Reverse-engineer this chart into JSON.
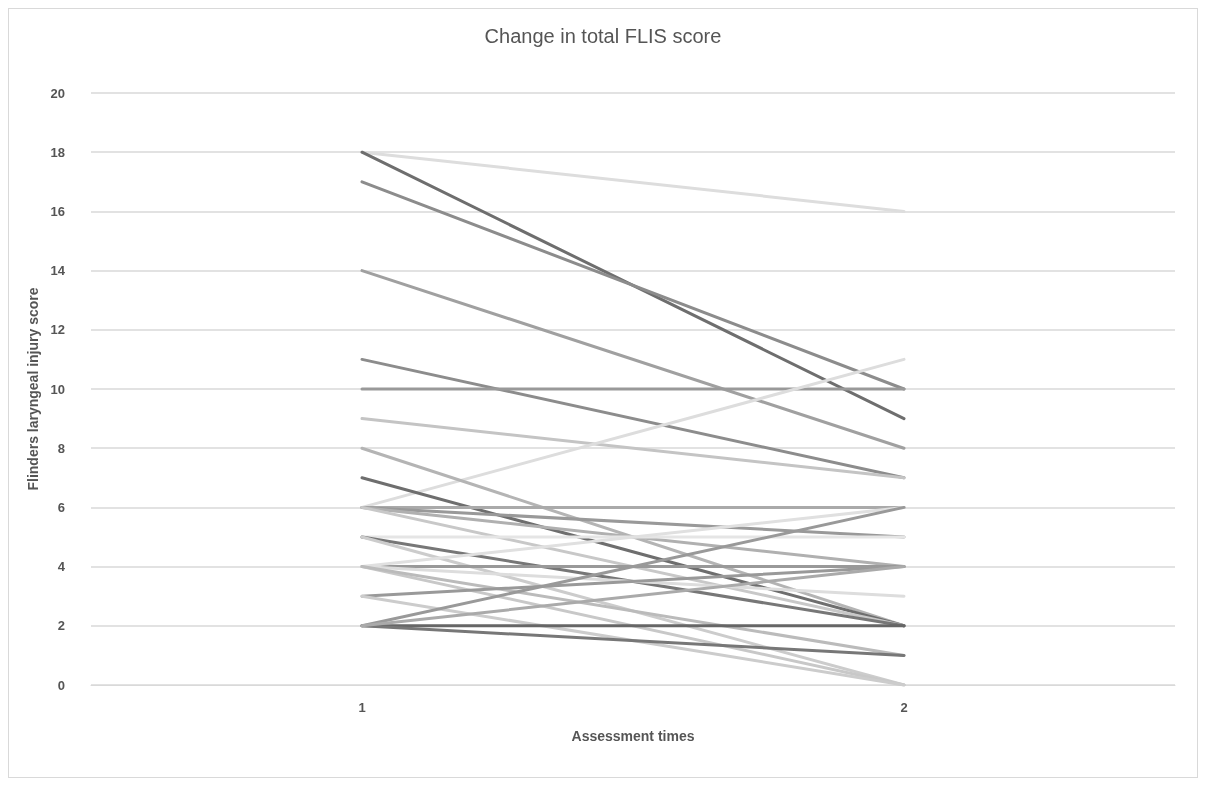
{
  "chart_data": {
    "type": "line",
    "title": "Change in total FLIS score",
    "xlabel": "Assessment times",
    "ylabel": "Flinders laryngeal injury score",
    "categories": [
      "1",
      "2"
    ],
    "ylim": [
      0,
      20
    ],
    "yticks": [
      0,
      2,
      4,
      6,
      8,
      10,
      12,
      14,
      16,
      18,
      20
    ],
    "grid": "y",
    "marker": "none",
    "series": [
      {
        "color": "#dddddd",
        "values": [
          18,
          16
        ]
      },
      {
        "color": "#6e6e6e",
        "values": [
          18,
          9
        ]
      },
      {
        "color": "#8c8c8c",
        "values": [
          17,
          10
        ]
      },
      {
        "color": "#a0a0a0",
        "values": [
          14,
          8
        ]
      },
      {
        "color": "#8c8c8c",
        "values": [
          11,
          7
        ]
      },
      {
        "color": "#999999",
        "values": [
          10,
          10
        ]
      },
      {
        "color": "#c4c4c4",
        "values": [
          9,
          7
        ]
      },
      {
        "color": "#dddddd",
        "values": [
          6,
          11
        ]
      },
      {
        "color": "#b4b4b4",
        "values": [
          8,
          2
        ]
      },
      {
        "color": "#6e6e6e",
        "values": [
          7,
          2
        ]
      },
      {
        "color": "#aaaaaa",
        "values": [
          6,
          6
        ]
      },
      {
        "color": "#999999",
        "values": [
          6,
          5
        ]
      },
      {
        "color": "#b0b0b0",
        "values": [
          6,
          4
        ]
      },
      {
        "color": "#c8c8c8",
        "values": [
          6,
          2
        ]
      },
      {
        "color": "#e5e5e5",
        "values": [
          5,
          5
        ]
      },
      {
        "color": "#777777",
        "values": [
          5,
          2
        ]
      },
      {
        "color": "#cccccc",
        "values": [
          5,
          0
        ]
      },
      {
        "color": "#999999",
        "values": [
          4,
          4
        ]
      },
      {
        "color": "#dddddd",
        "values": [
          4,
          3
        ]
      },
      {
        "color": "#e0e0e0",
        "values": [
          4,
          6
        ]
      },
      {
        "color": "#c8c8c8",
        "values": [
          4,
          0
        ]
      },
      {
        "color": "#bbbbbb",
        "values": [
          4,
          1
        ]
      },
      {
        "color": "#999999",
        "values": [
          3,
          4
        ]
      },
      {
        "color": "#cccccc",
        "values": [
          3,
          0
        ]
      },
      {
        "color": "#666666",
        "values": [
          2,
          2
        ]
      },
      {
        "color": "#777777",
        "values": [
          2,
          1
        ]
      },
      {
        "color": "#999999",
        "values": [
          2,
          6
        ]
      },
      {
        "color": "#aaaaaa",
        "values": [
          2,
          4
        ]
      }
    ]
  }
}
